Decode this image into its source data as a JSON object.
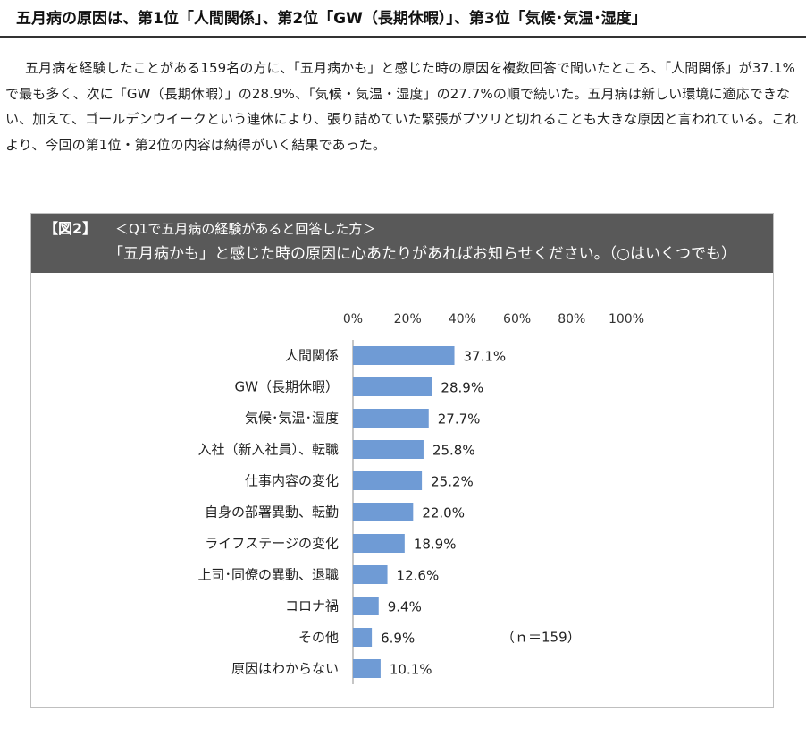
{
  "article": {
    "title": "五月病の原因は、第1位「人間関係」、第2位「GW（長期休暇）」、第3位「気候･気温･湿度」",
    "body": "五月病を経験したことがある159名の方に、「五月病かも」と感じた時の原因を複数回答で聞いたところ、「人間関係」が37.1%で最も多く、次に「GW（長期休暇）」の28.9%、「気候・気温・湿度」の27.7%の順で続いた。五月病は新しい環境に適応できない、加えて、ゴールデンウイークという連休により、張り詰めていた緊張がプツリと切れることも大きな原因と言われている。これより、今回の第1位・第2位の内容は納得がいく結果であった。"
  },
  "figure": {
    "label": "【図2】",
    "subtitle": "＜Q1で五月病の経験があると回答した方＞",
    "question": "「五月病かも」と感じた時の原因に心あたりがあればお知らせください。（○はいくつでも）",
    "note": "（ｎ＝159）"
  },
  "chart_data": {
    "type": "bar",
    "orientation": "horizontal",
    "categories": [
      "人間関係",
      "GW（長期休暇）",
      "気候･気温･湿度",
      "入社（新入社員）、転職",
      "仕事内容の変化",
      "自身の部署異動、転勤",
      "ライフステージの変化",
      "上司･同僚の異動、退職",
      "コロナ禍",
      "その他",
      "原因はわからない"
    ],
    "values": [
      37.1,
      28.9,
      27.7,
      25.8,
      25.2,
      22.0,
      18.9,
      12.6,
      9.4,
      6.9,
      10.1
    ],
    "value_labels": [
      "37.1%",
      "28.9%",
      "27.7%",
      "25.8%",
      "25.2%",
      "22.0%",
      "18.9%",
      "12.6%",
      "9.4%",
      "6.9%",
      "10.1%"
    ],
    "xlim": [
      0,
      100
    ],
    "ticks": [
      0,
      20,
      40,
      60,
      80,
      100
    ],
    "tick_labels": [
      "0%",
      "20%",
      "40%",
      "60%",
      "80%",
      "100%"
    ],
    "axis_position": "top",
    "grid": false,
    "bar_color": "#6f9bd5"
  }
}
